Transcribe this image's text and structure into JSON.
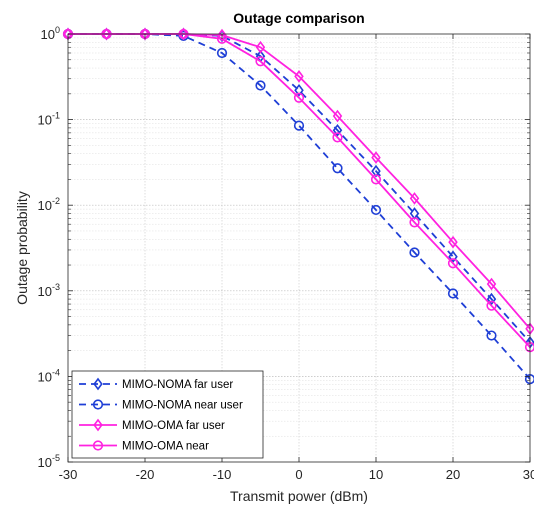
{
  "chart_data": {
    "type": "line",
    "title": "Outage comparison",
    "xlabel": "Transmit power (dBm)",
    "ylabel": "Outage probability",
    "x": [
      -30,
      -25,
      -20,
      -15,
      -10,
      -5,
      0,
      5,
      10,
      15,
      20,
      25,
      30
    ],
    "xlim": [
      -30,
      30
    ],
    "ylim": [
      1e-05,
      1
    ],
    "yscale": "log",
    "x_ticks": [
      "-30",
      "-20",
      "-10",
      "0",
      "10",
      "20",
      "30"
    ],
    "y_ticks": [
      {
        "base": "10",
        "exp": "0"
      },
      {
        "base": "10",
        "exp": "-1"
      },
      {
        "base": "10",
        "exp": "-2"
      },
      {
        "base": "10",
        "exp": "-3"
      },
      {
        "base": "10",
        "exp": "-4"
      },
      {
        "base": "10",
        "exp": "-5"
      }
    ],
    "grid": true,
    "legend_position": "bottom-left",
    "series": [
      {
        "name": "MIMO-NOMA far user",
        "color": "#1f3fd6",
        "dash": "dashed",
        "marker": "diamond",
        "values": [
          1.0,
          1.0,
          1.0,
          1.0,
          0.95,
          0.55,
          0.22,
          0.075,
          0.025,
          0.008,
          0.0025,
          0.0008,
          0.00025
        ]
      },
      {
        "name": "MIMO-NOMA near user",
        "color": "#1f3fd6",
        "dash": "dashed",
        "marker": "circle",
        "values": [
          1.0,
          1.0,
          1.0,
          0.95,
          0.6,
          0.25,
          0.085,
          0.027,
          0.0088,
          0.0028,
          0.00093,
          0.0003,
          9.3e-05
        ]
      },
      {
        "name": "MIMO-OMA far user",
        "color": "#ff22e0",
        "dash": "solid",
        "marker": "diamond",
        "values": [
          1.0,
          1.0,
          1.0,
          1.0,
          0.97,
          0.7,
          0.32,
          0.11,
          0.036,
          0.012,
          0.0037,
          0.0012,
          0.00036
        ]
      },
      {
        "name": "MIMO-OMA near",
        "color": "#ff22e0",
        "dash": "solid",
        "marker": "circle",
        "values": [
          1.0,
          1.0,
          1.0,
          1.0,
          0.88,
          0.48,
          0.18,
          0.062,
          0.02,
          0.0063,
          0.0021,
          0.00067,
          0.00022
        ]
      }
    ]
  }
}
